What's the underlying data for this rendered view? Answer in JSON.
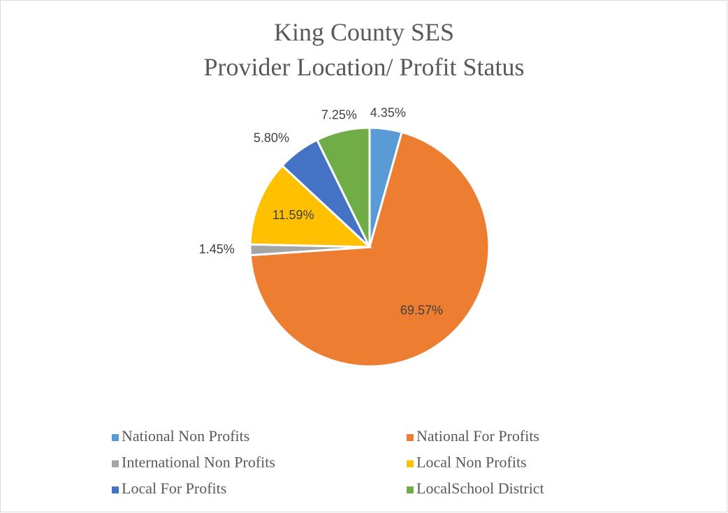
{
  "chart_data": {
    "type": "pie",
    "title": [
      "King County SES",
      "Provider Location/ Profit Status"
    ],
    "categories": [
      "National Non Profits",
      "National For Profits",
      "International Non Profits",
      "Local Non Profits",
      "Local For Profits",
      "LocalSchool District"
    ],
    "values": [
      4.35,
      69.57,
      1.45,
      11.59,
      5.8,
      7.25
    ],
    "value_labels": [
      "4.35%",
      "69.57%",
      "1.45%",
      "11.59%",
      "5.80%",
      "7.25%"
    ],
    "colors": [
      "#5b9bd5",
      "#ed7d31",
      "#a5a5a5",
      "#ffc000",
      "#4472c4",
      "#70ad47"
    ],
    "legend": "bottom"
  }
}
